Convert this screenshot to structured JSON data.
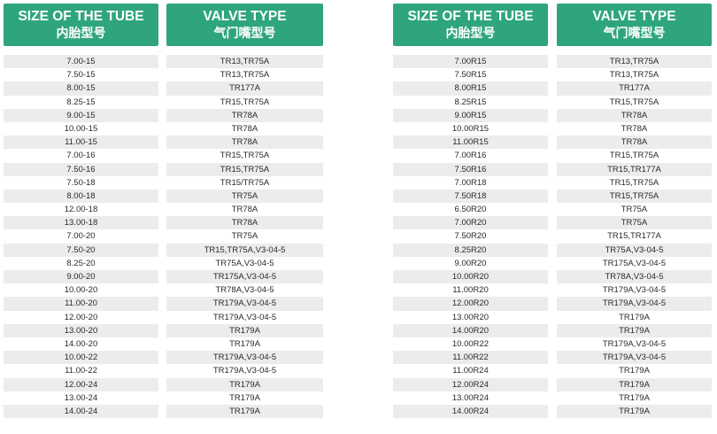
{
  "tables": [
    {
      "header": {
        "size_en": "SIZE OF THE TUBE",
        "size_cn": "内胎型号",
        "valve_en": "VALVE TYPE",
        "valve_cn": "气门嘴型号"
      },
      "rows": [
        [
          "7.00-15",
          "TR13,TR75A"
        ],
        [
          "7.50-15",
          "TR13,TR75A"
        ],
        [
          "8.00-15",
          "TR177A"
        ],
        [
          "8.25-15",
          "TR15,TR75A"
        ],
        [
          "9.00-15",
          "TR78A"
        ],
        [
          "10.00-15",
          "TR78A"
        ],
        [
          "11.00-15",
          "TR78A"
        ],
        [
          "7.00-16",
          "TR15,TR75A"
        ],
        [
          "7.50-16",
          "TR15,TR75A"
        ],
        [
          "7.50-18",
          "TR15/TR75A"
        ],
        [
          "8.00-18",
          "TR75A"
        ],
        [
          "12.00-18",
          "TR78A"
        ],
        [
          "13.00-18",
          "TR78A"
        ],
        [
          "7.00-20",
          "TR75A"
        ],
        [
          "7.50-20",
          "TR15,TR75A,V3-04-5"
        ],
        [
          "8.25-20",
          "TR75A,V3-04-5"
        ],
        [
          "9.00-20",
          "TR175A,V3-04-5"
        ],
        [
          "10.00-20",
          "TR78A,V3-04-5"
        ],
        [
          "11.00-20",
          "TR179A,V3-04-5"
        ],
        [
          "12.00-20",
          "TR179A,V3-04-5"
        ],
        [
          "13.00-20",
          "TR179A"
        ],
        [
          "14.00-20",
          "TR179A"
        ],
        [
          "10.00-22",
          "TR179A,V3-04-5"
        ],
        [
          "11.00-22",
          "TR179A,V3-04-5"
        ],
        [
          "12.00-24",
          "TR179A"
        ],
        [
          "13.00-24",
          "TR179A"
        ],
        [
          "14.00-24",
          "TR179A"
        ]
      ]
    },
    {
      "header": {
        "size_en": "SIZE OF THE TUBE",
        "size_cn": "内胎型号",
        "valve_en": "VALVE TYPE",
        "valve_cn": "气门嘴型号"
      },
      "rows": [
        [
          "7.00R15",
          "TR13,TR75A"
        ],
        [
          "7.50R15",
          "TR13,TR75A"
        ],
        [
          "8.00R15",
          "TR177A"
        ],
        [
          "8.25R15",
          "TR15,TR75A"
        ],
        [
          "9.00R15",
          "TR78A"
        ],
        [
          "10.00R15",
          "TR78A"
        ],
        [
          "11.00R15",
          "TR78A"
        ],
        [
          "7.00R16",
          "TR15,TR75A"
        ],
        [
          "7.50R16",
          "TR15,TR177A"
        ],
        [
          "7.00R18",
          "TR15,TR75A"
        ],
        [
          "7.50R18",
          "TR15,TR75A"
        ],
        [
          "6.50R20",
          "TR75A"
        ],
        [
          "7.00R20",
          "TR75A"
        ],
        [
          "7.50R20",
          "TR15,TR177A"
        ],
        [
          "8.25R20",
          "TR75A,V3-04-5"
        ],
        [
          "9.00R20",
          "TR175A,V3-04-5"
        ],
        [
          "10.00R20",
          "TR78A,V3-04-5"
        ],
        [
          "11.00R20",
          "TR179A,V3-04-5"
        ],
        [
          "12.00R20",
          "TR179A,V3-04-5"
        ],
        [
          "13.00R20",
          "TR179A"
        ],
        [
          "14.00R20",
          "TR179A"
        ],
        [
          "10.00R22",
          "TR179A,V3-04-5"
        ],
        [
          "11.00R22",
          "TR179A,V3-04-5"
        ],
        [
          "11.00R24",
          "TR179A"
        ],
        [
          "12.00R24",
          "TR179A"
        ],
        [
          "13.00R24",
          "TR179A"
        ],
        [
          "14.00R24",
          "TR179A"
        ]
      ]
    }
  ],
  "colors": {
    "header_bg": "#2fa57d",
    "header_text": "#ffffff",
    "stripe": "#ececec"
  }
}
